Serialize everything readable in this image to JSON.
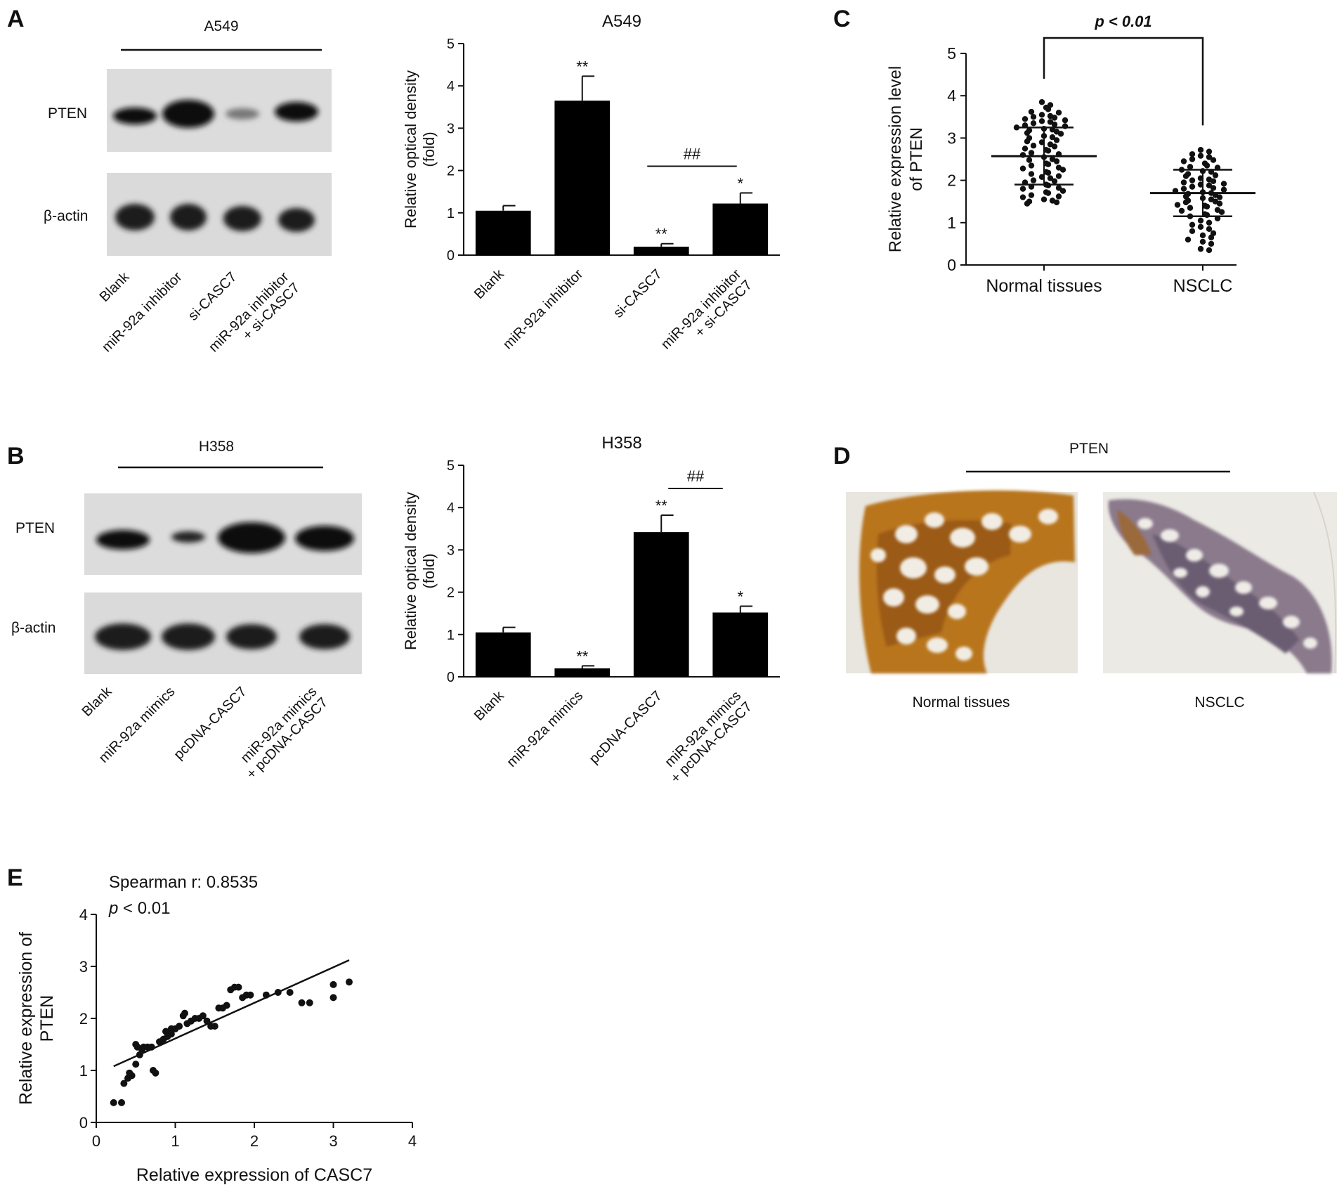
{
  "panels": {
    "A": {
      "letter": "A",
      "blot": {
        "cell_line": "A549",
        "bands": [
          "PTEN",
          "β-actin"
        ],
        "lanes": [
          "Blank",
          "miR-92a inhibitor",
          "si-CASC7",
          "miR-92a inhibitor\n+ si-CASC7"
        ]
      }
    },
    "B": {
      "letter": "B",
      "blot": {
        "cell_line": "H358",
        "bands": [
          "PTEN",
          "β-actin"
        ],
        "lanes": [
          "Blank",
          "miR-92a mimics",
          "pcDNA-CASC7",
          "miR-92a mimics\n+ pcDNA-CASC7"
        ]
      }
    },
    "C": {
      "letter": "C"
    },
    "D": {
      "letter": "D",
      "title": "PTEN",
      "images": [
        "Normal tissues",
        "NSCLC"
      ]
    },
    "E": {
      "letter": "E"
    }
  },
  "chart_data": [
    {
      "id": "A-bar",
      "type": "bar",
      "title": "A549",
      "ylabel": "Relative optical density\n(fold)",
      "categories": [
        "Blank",
        "miR-92a inhibitor",
        "si-CASC7",
        "miR-92a inhibitor\n+ si-CASC7"
      ],
      "values": [
        1.05,
        3.65,
        0.2,
        1.22
      ],
      "errors": [
        0.12,
        0.58,
        0.07,
        0.25
      ],
      "annotations": [
        "",
        "**",
        "**",
        "*"
      ],
      "bracket": {
        "label": "##",
        "from": 2,
        "to": 3
      },
      "ylim": [
        0,
        5
      ],
      "yticks": [
        0,
        1,
        2,
        3,
        4,
        5
      ],
      "colors": {
        "bar": "#000000"
      }
    },
    {
      "id": "B-bar",
      "type": "bar",
      "title": "H358",
      "ylabel": "Relative optical density\n(fold)",
      "categories": [
        "Blank",
        "miR-92a mimics",
        "pcDNA-CASC7",
        "miR-92a mimics\n+ pcDNA-CASC7"
      ],
      "values": [
        1.05,
        0.2,
        3.42,
        1.52
      ],
      "errors": [
        0.12,
        0.06,
        0.4,
        0.15
      ],
      "annotations": [
        "",
        "**",
        "**",
        "*"
      ],
      "bracket": {
        "label": "##",
        "from": 2,
        "to": 3
      },
      "ylim": [
        0,
        5
      ],
      "yticks": [
        0,
        1,
        2,
        3,
        4,
        5
      ],
      "colors": {
        "bar": "#000000"
      }
    },
    {
      "id": "C-scatter",
      "type": "scatter",
      "ylabel": "Relative expression level\nof PTEN",
      "categories": [
        "Normal tissues",
        "NSCLC"
      ],
      "groups": [
        {
          "name": "Normal tissues",
          "mean": 2.57,
          "sd_low": 1.9,
          "sd_high": 3.25,
          "values": [
            3.85,
            3.78,
            3.72,
            3.68,
            3.62,
            3.6,
            3.55,
            3.52,
            3.5,
            3.48,
            3.45,
            3.42,
            3.4,
            3.38,
            3.35,
            3.32,
            3.3,
            3.28,
            3.25,
            3.22,
            3.2,
            3.18,
            3.15,
            3.12,
            3.1,
            3.05,
            3.02,
            3.0,
            2.95,
            2.92,
            2.9,
            2.85,
            2.82,
            2.8,
            2.75,
            2.72,
            2.7,
            2.65,
            2.62,
            2.6,
            2.55,
            2.5,
            2.48,
            2.45,
            2.4,
            2.38,
            2.35,
            2.3,
            2.28,
            2.25,
            2.2,
            2.18,
            2.15,
            2.1,
            2.08,
            2.05,
            2.0,
            1.98,
            1.95,
            1.9,
            1.88,
            1.85,
            1.82,
            1.8,
            1.75,
            1.72,
            1.7,
            1.65,
            1.62,
            1.6,
            1.55,
            1.52,
            1.5,
            1.48,
            1.45
          ]
        },
        {
          "name": "NSCLC",
          "mean": 1.7,
          "sd_low": 1.15,
          "sd_high": 2.25,
          "values": [
            2.72,
            2.68,
            2.62,
            2.58,
            2.55,
            2.5,
            2.48,
            2.45,
            2.4,
            2.35,
            2.32,
            2.3,
            2.25,
            2.22,
            2.2,
            2.15,
            2.12,
            2.1,
            2.05,
            2.02,
            2.0,
            1.98,
            1.95,
            1.92,
            1.9,
            1.88,
            1.85,
            1.82,
            1.8,
            1.78,
            1.75,
            1.72,
            1.7,
            1.68,
            1.65,
            1.62,
            1.6,
            1.58,
            1.55,
            1.52,
            1.5,
            1.48,
            1.45,
            1.42,
            1.4,
            1.38,
            1.35,
            1.3,
            1.28,
            1.25,
            1.2,
            1.18,
            1.15,
            1.1,
            1.05,
            1.0,
            0.95,
            0.9,
            0.85,
            0.8,
            0.75,
            0.7,
            0.65,
            0.6,
            0.55,
            0.5,
            0.38,
            0.35
          ]
        }
      ],
      "significance": "p < 0.01",
      "ylim": [
        0,
        5
      ],
      "yticks": [
        0,
        1,
        2,
        3,
        4,
        5
      ]
    },
    {
      "id": "E-scatter",
      "type": "scatter",
      "xlabel": "Relative expression of CASC7",
      "ylabel": "Relative expression of\nPTEN",
      "stat_label": "Spearman r: 0.8535",
      "p_symbol": "p",
      "p_text": " < 0.01",
      "x": [
        0.22,
        0.32,
        0.35,
        0.4,
        0.45,
        0.42,
        0.5,
        0.5,
        0.52,
        0.55,
        0.58,
        0.6,
        0.65,
        0.7,
        0.72,
        0.75,
        0.8,
        0.82,
        0.85,
        0.88,
        0.9,
        0.95,
        0.95,
        1.0,
        1.05,
        1.1,
        1.12,
        1.15,
        1.2,
        1.25,
        1.3,
        1.35,
        1.4,
        1.45,
        1.5,
        1.55,
        1.6,
        1.65,
        1.7,
        1.75,
        1.8,
        1.85,
        1.9,
        1.95,
        2.15,
        2.3,
        2.45,
        2.6,
        2.7,
        3.0,
        3.0,
        3.2
      ],
      "y": [
        0.38,
        0.38,
        0.75,
        0.85,
        0.9,
        0.95,
        1.12,
        1.5,
        1.45,
        1.3,
        1.4,
        1.45,
        1.45,
        1.45,
        1.0,
        0.95,
        1.55,
        1.55,
        1.6,
        1.75,
        1.65,
        1.7,
        1.8,
        1.8,
        1.85,
        2.05,
        2.1,
        1.9,
        1.95,
        2.0,
        2.0,
        2.05,
        1.95,
        1.85,
        1.85,
        2.2,
        2.2,
        2.25,
        2.55,
        2.6,
        2.6,
        2.4,
        2.45,
        2.45,
        2.45,
        2.5,
        2.5,
        2.3,
        2.3,
        2.4,
        2.65,
        2.7
      ],
      "fit_line": {
        "x": [
          0.22,
          3.2
        ],
        "y": [
          1.08,
          3.12
        ]
      },
      "xlim": [
        0,
        4
      ],
      "ylim": [
        0,
        4
      ],
      "xticks": [
        0,
        1,
        2,
        3,
        4
      ],
      "yticks": [
        0,
        1,
        2,
        3,
        4
      ]
    }
  ]
}
